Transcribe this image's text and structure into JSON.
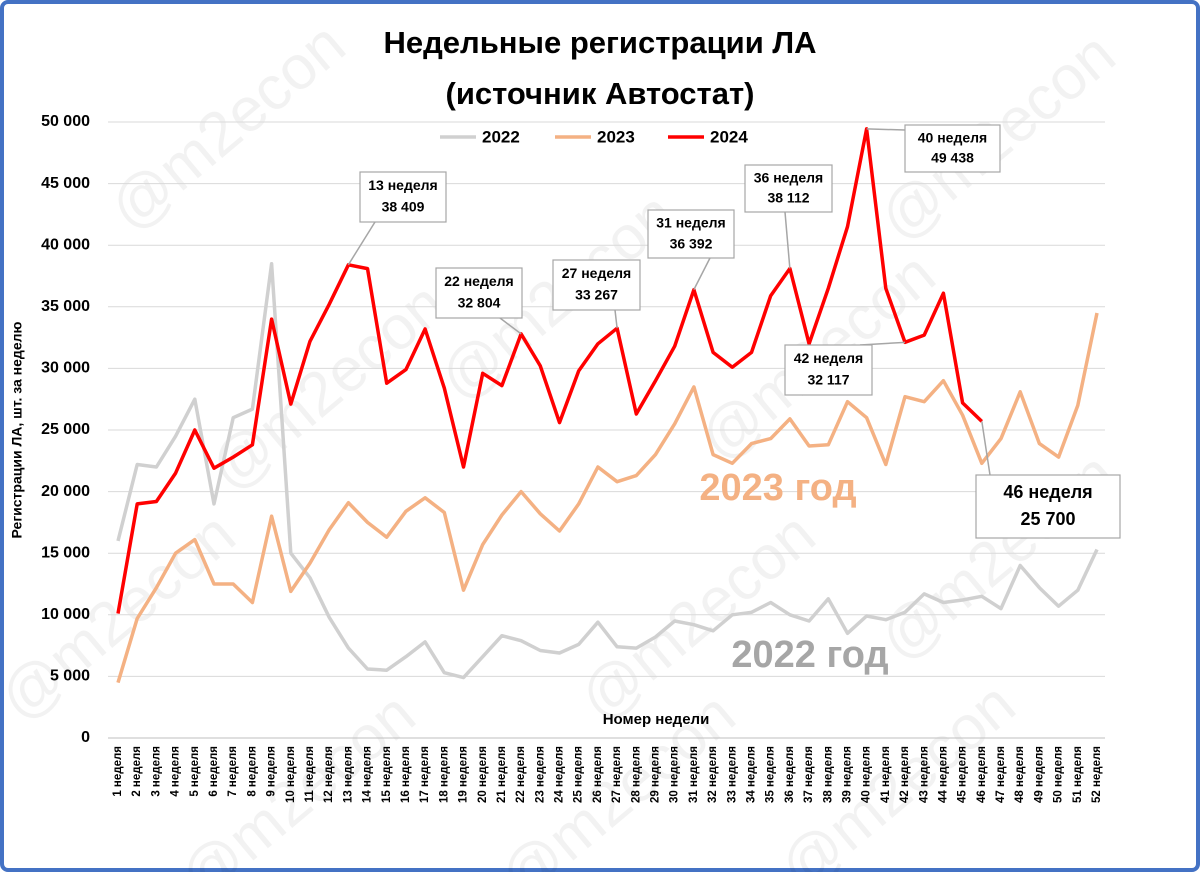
{
  "chart_data": {
    "type": "line",
    "title": [
      "Недельные регистрации ЛА",
      "(источник Автостат)"
    ],
    "y_label": "Регистрации ЛА, шт. за неделю",
    "x_label": "Номер недели",
    "watermark": "@m2econ",
    "categories": [
      "1 неделя",
      "2 неделя",
      "3 неделя",
      "4 неделя",
      "5 неделя",
      "6 неделя",
      "7 неделя",
      "8 неделя",
      "9 неделя",
      "10 неделя",
      "11 неделя",
      "12 неделя",
      "13 неделя",
      "14 неделя",
      "15 неделя",
      "16 неделя",
      "17 неделя",
      "18 неделя",
      "19 неделя",
      "20 неделя",
      "21 неделя",
      "22 неделя",
      "23 неделя",
      "24 неделя",
      "25 неделя",
      "26 неделя",
      "27 неделя",
      "28 неделя",
      "29 неделя",
      "30 неделя",
      "31 неделя",
      "32 неделя",
      "33 неделя",
      "34 неделя",
      "35 неделя",
      "36 неделя",
      "37 неделя",
      "38 неделя",
      "39 неделя",
      "40 неделя",
      "41 неделя",
      "42 неделя",
      "43 неделя",
      "44 неделя",
      "45 неделя",
      "46 неделя",
      "47 неделя",
      "48 неделя",
      "49 неделя",
      "50 неделя",
      "51 неделя",
      "52 неделя"
    ],
    "series": [
      {
        "name": "2022",
        "color": "#d0d0d0",
        "values": [
          16000,
          22200,
          22000,
          24500,
          27500,
          19000,
          26000,
          26700,
          38500,
          15000,
          13000,
          9800,
          7300,
          5600,
          5500,
          6600,
          7800,
          5300,
          4900,
          6600,
          8300,
          7900,
          7100,
          6900,
          7600,
          9400,
          7400,
          7300,
          8200,
          9500,
          9200,
          8700,
          10000,
          10200,
          11000,
          10000,
          9500,
          11300,
          8500,
          9900,
          9600,
          10200,
          11700,
          11000,
          11200,
          11500,
          10500,
          14000,
          12200,
          10700,
          12000,
          15300
        ]
      },
      {
        "name": "2023",
        "color": "#f4b183",
        "values": [
          4500,
          9700,
          12200,
          15000,
          16100,
          12500,
          12500,
          11000,
          18000,
          11900,
          14200,
          16900,
          19100,
          17500,
          16300,
          18400,
          19500,
          18300,
          12000,
          15700,
          18100,
          20000,
          18200,
          16800,
          19000,
          22000,
          20800,
          21300,
          23000,
          25500,
          28500,
          23000,
          22300,
          23900,
          24300,
          25900,
          23700,
          23800,
          27300,
          26000,
          22200,
          27700,
          27300,
          29000,
          26200,
          22300,
          24300,
          28100,
          23900,
          22800,
          27000,
          34500
        ]
      },
      {
        "name": "2024",
        "color": "#ff0000",
        "values": [
          10100,
          19000,
          19200,
          21500,
          25000,
          21900,
          22800,
          23800,
          34000,
          27100,
          32200,
          35200,
          38409,
          38100,
          28800,
          29900,
          33200,
          28400,
          22000,
          29600,
          28600,
          32804,
          30200,
          25600,
          29800,
          32000,
          33267,
          26300,
          29000,
          31800,
          36392,
          31300,
          30100,
          31300,
          35900,
          38112,
          32000,
          36500,
          41500,
          49438,
          36500,
          32117,
          32700,
          36100,
          27200,
          25700,
          null,
          null,
          null,
          null,
          null,
          null
        ]
      }
    ],
    "ylim": [
      0,
      50000
    ],
    "yticks": [
      0,
      {
        "value": 5000,
        "label": "5 000"
      },
      {
        "value": 10000,
        "label": "10 000"
      },
      {
        "value": 15000,
        "label": "15 000"
      },
      {
        "value": 20000,
        "label": "20 000"
      },
      {
        "value": 25000,
        "label": "25 000"
      },
      {
        "value": 30000,
        "label": "30 000"
      },
      {
        "value": 35000,
        "label": "35 000"
      },
      {
        "value": 40000,
        "label": "40 000"
      },
      {
        "value": 45000,
        "label": "45 000"
      },
      {
        "value": 50000,
        "label": "50 000"
      }
    ],
    "grid": true,
    "legend": "top",
    "annotations": [
      {
        "lines": [
          "13 неделя",
          "38 409"
        ]
      },
      {
        "lines": [
          "22 неделя",
          "32 804"
        ]
      },
      {
        "lines": [
          "27 неделя",
          "33 267"
        ]
      },
      {
        "lines": [
          "31 неделя",
          "36 392"
        ]
      },
      {
        "lines": [
          "36 неделя",
          "38 112"
        ]
      },
      {
        "lines": [
          "40 неделя",
          "49 438"
        ]
      },
      {
        "lines": [
          "42 неделя",
          "32 117"
        ]
      },
      {
        "lines": [
          "46 неделя",
          "25 700"
        ]
      }
    ],
    "series_labels": [
      {
        "text": "2022 год",
        "color": "#a6a6a6"
      },
      {
        "text": "2023 год",
        "color": "#f4b183"
      }
    ]
  }
}
